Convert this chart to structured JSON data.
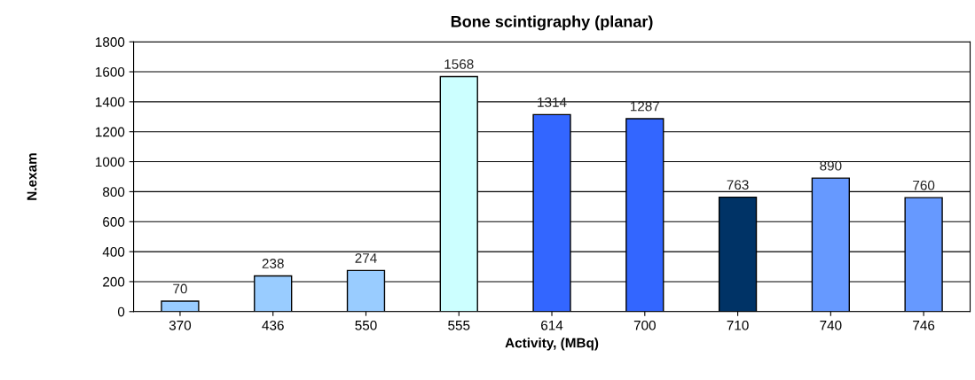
{
  "chart_data": {
    "type": "bar",
    "title": "Bone scintigraphy (planar)",
    "xlabel": "Activity, (MBq)",
    "ylabel": "N.exam",
    "categories": [
      "370",
      "436",
      "550",
      "555",
      "614",
      "700",
      "710",
      "740",
      "746"
    ],
    "values": [
      70,
      238,
      274,
      1568,
      1314,
      1287,
      763,
      890,
      760
    ],
    "colors": [
      "#99ccff",
      "#99ccff",
      "#99ccff",
      "#ccffff",
      "#3366ff",
      "#3366ff",
      "#003366",
      "#6699ff",
      "#6699ff"
    ],
    "ylim": [
      0,
      1800
    ],
    "yticks": [
      0,
      200,
      400,
      600,
      800,
      1000,
      1200,
      1400,
      1600,
      1800
    ],
    "grid": "y",
    "data_labels": true
  }
}
